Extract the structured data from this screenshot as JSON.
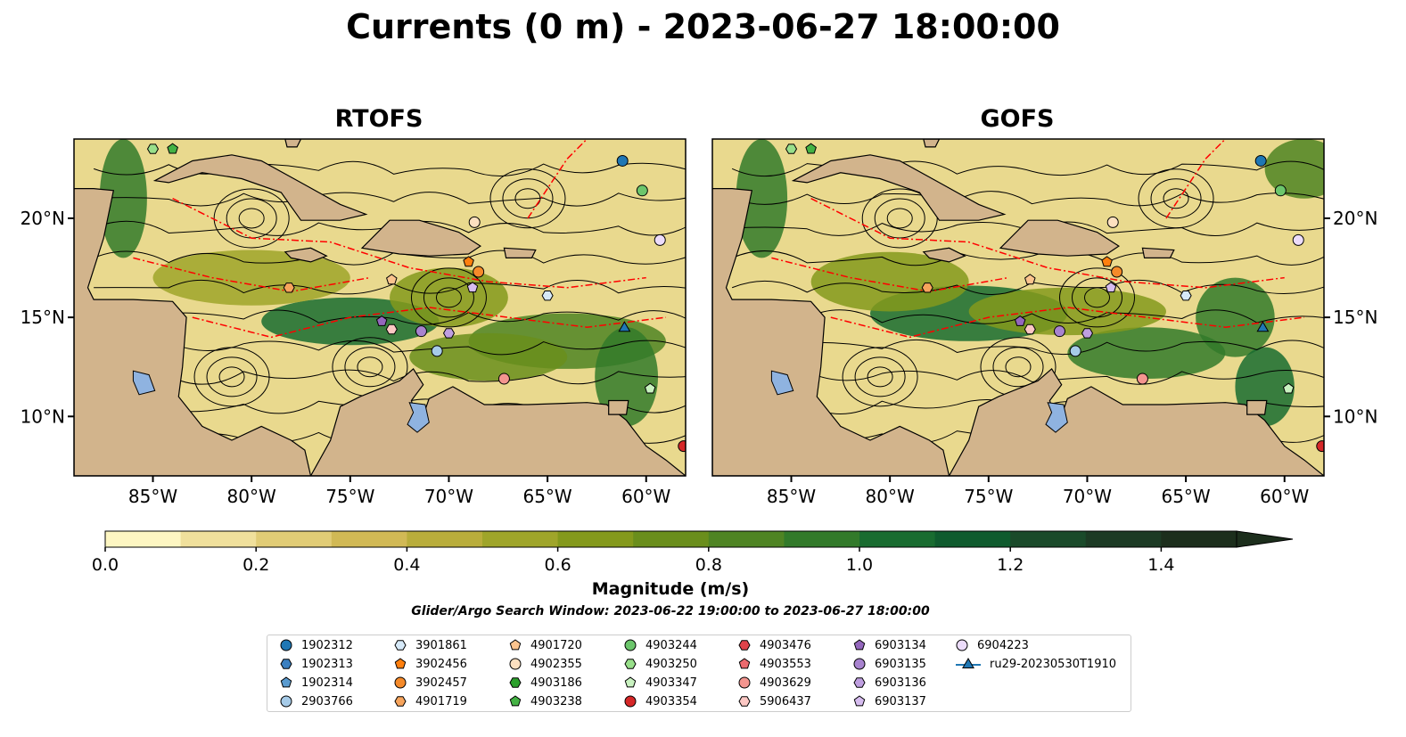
{
  "title": "Currents (0 m) - 2023-06-27 18:00:00",
  "panels": [
    {
      "title": "RTOFS"
    },
    {
      "title": "GOFS"
    }
  ],
  "x_ticks": [
    "85°W",
    "80°W",
    "75°W",
    "70°W",
    "65°W",
    "60°W"
  ],
  "y_ticks": [
    "20°N",
    "15°N",
    "10°N"
  ],
  "colorbar": {
    "label": "Magnitude (m/s)",
    "ticks": [
      "0.0",
      "0.2",
      "0.4",
      "0.6",
      "0.8",
      "1.0",
      "1.2",
      "1.4"
    ],
    "min": 0.0,
    "max": 1.5,
    "extend": "max",
    "colors": [
      "#fdf6c2",
      "#f0e09c",
      "#e1cc76",
      "#d1b955",
      "#b9ad3b",
      "#9fa52a",
      "#84991c",
      "#6a8e1c",
      "#4f8423",
      "#327a2a",
      "#196c30",
      "#0f5b2e",
      "#1a4a2a",
      "#1c3a24",
      "#1c2e1c"
    ]
  },
  "window_text": "Glider/Argo Search Window: 2023-06-22 19:00:00 to 2023-06-27 18:00:00",
  "colors": {
    "land": "#d2b48c",
    "lake": "#8fb3e0",
    "boundary": "#ff0000",
    "streamline": "#000000"
  },
  "legend": [
    {
      "label": "1902312",
      "marker": "circle",
      "color": "#1f77b4"
    },
    {
      "label": "1902313",
      "marker": "hexagon",
      "color": "#3a7fc0"
    },
    {
      "label": "1902314",
      "marker": "pentagon",
      "color": "#5a9bd0"
    },
    {
      "label": "2903766",
      "marker": "circle",
      "color": "#a6cbe8"
    },
    {
      "label": "3901861",
      "marker": "hexagon",
      "color": "#d6e9f8"
    },
    {
      "label": "3902456",
      "marker": "pentagon",
      "color": "#ff7f0e"
    },
    {
      "label": "3902457",
      "marker": "circle",
      "color": "#f58a2a"
    },
    {
      "label": "4901719",
      "marker": "hexagon",
      "color": "#f7a45c"
    },
    {
      "label": "4901720",
      "marker": "pentagon",
      "color": "#fbc48e"
    },
    {
      "label": "4902355",
      "marker": "circle",
      "color": "#fde0c0"
    },
    {
      "label": "4903186",
      "marker": "hexagon",
      "color": "#2ca02c"
    },
    {
      "label": "4903238",
      "marker": "pentagon",
      "color": "#44b244"
    },
    {
      "label": "4903244",
      "marker": "circle",
      "color": "#6cc66c"
    },
    {
      "label": "4903250",
      "marker": "hexagon",
      "color": "#98df8a"
    },
    {
      "label": "4903347",
      "marker": "pentagon",
      "color": "#c9f2c0"
    },
    {
      "label": "4903354",
      "marker": "circle",
      "color": "#d62728"
    },
    {
      "label": "4903476",
      "marker": "hexagon",
      "color": "#e0434a"
    },
    {
      "label": "4903553",
      "marker": "pentagon",
      "color": "#ec6a6e"
    },
    {
      "label": "4903629",
      "marker": "circle",
      "color": "#f4958f"
    },
    {
      "label": "5906437",
      "marker": "hexagon",
      "color": "#fcc8c4"
    },
    {
      "label": "6903134",
      "marker": "pentagon",
      "color": "#9467bd"
    },
    {
      "label": "6903135",
      "marker": "circle",
      "color": "#a883cf"
    },
    {
      "label": "6903136",
      "marker": "hexagon",
      "color": "#bf9fe0"
    },
    {
      "label": "6903137",
      "marker": "pentagon",
      "color": "#d6bcef"
    },
    {
      "label": "6904223",
      "marker": "circle",
      "color": "#ecdcfb"
    },
    {
      "label": "ru29-20230530T1910",
      "marker": "triangle-line",
      "color": "#1f77b4"
    }
  ],
  "observations": [
    {
      "id": "1902312",
      "lon": -61.2,
      "lat": 22.9
    },
    {
      "id": "4903244",
      "lon": -60.2,
      "lat": 21.4
    },
    {
      "id": "6904223",
      "lon": -59.3,
      "lat": 18.9
    },
    {
      "id": "4902355",
      "lon": -68.7,
      "lat": 19.8
    },
    {
      "id": "3902456",
      "lon": -69.0,
      "lat": 17.8
    },
    {
      "id": "3902457",
      "lon": -68.5,
      "lat": 17.3
    },
    {
      "id": "4901720",
      "lon": -72.9,
      "lat": 16.9
    },
    {
      "id": "4901719",
      "lon": -78.1,
      "lat": 16.5
    },
    {
      "id": "6903137",
      "lon": -68.8,
      "lat": 16.5
    },
    {
      "id": "3901861",
      "lon": -65.0,
      "lat": 16.1
    },
    {
      "id": "6903134",
      "lon": -73.4,
      "lat": 14.8
    },
    {
      "id": "5906437",
      "lon": -72.9,
      "lat": 14.4
    },
    {
      "id": "6903135",
      "lon": -71.4,
      "lat": 14.3
    },
    {
      "id": "6903136",
      "lon": -70.0,
      "lat": 14.2
    },
    {
      "id": "2903766",
      "lon": -70.6,
      "lat": 13.3
    },
    {
      "id": "4903629",
      "lon": -67.2,
      "lat": 11.9
    },
    {
      "id": "ru29-20230530T1910",
      "lon": -61.1,
      "lat": 14.5
    },
    {
      "id": "4903347",
      "lon": -59.8,
      "lat": 11.4
    },
    {
      "id": "4903354",
      "lon": -58.1,
      "lat": 8.5
    },
    {
      "id": "4903250",
      "lon": -85.0,
      "lat": 23.5
    },
    {
      "id": "4903238",
      "lon": -84.0,
      "lat": 23.5
    }
  ]
}
